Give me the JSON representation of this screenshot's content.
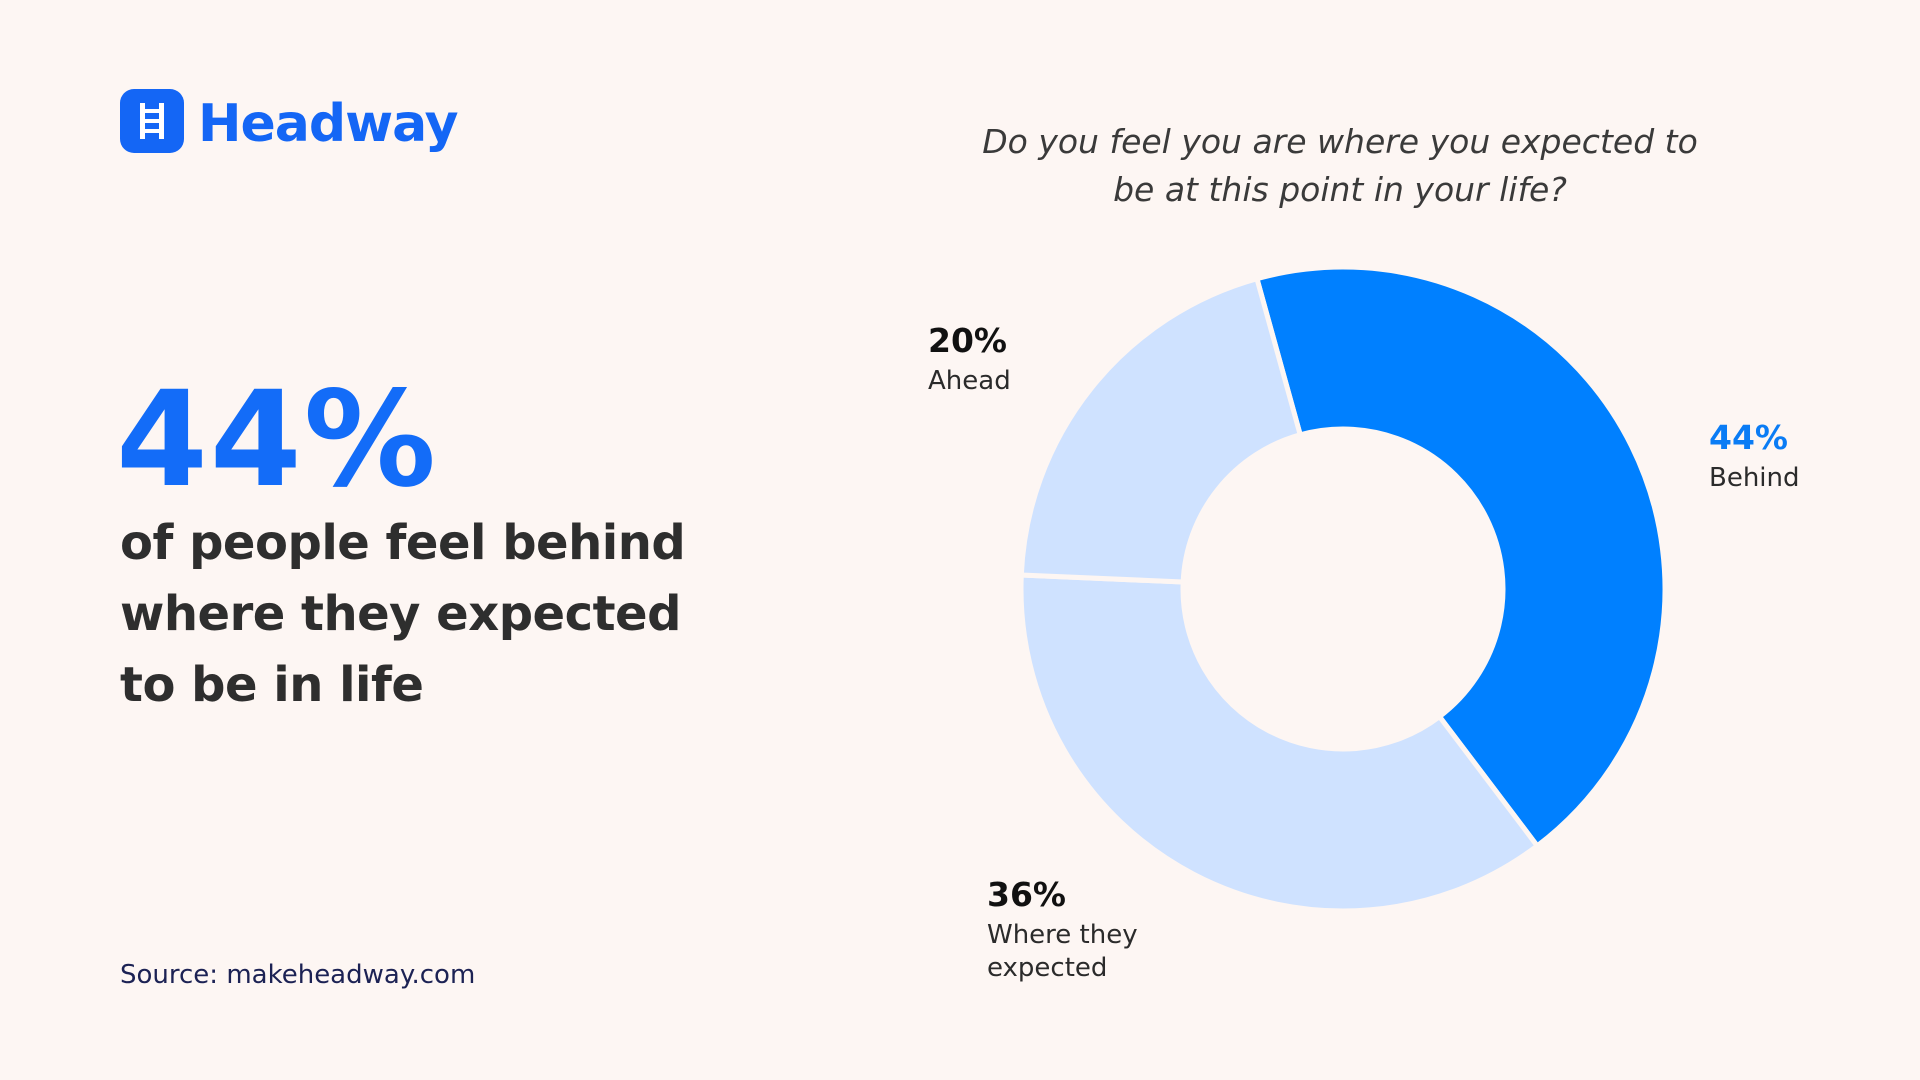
{
  "brand": "Headway",
  "headline": {
    "stat": "44%",
    "lines": [
      "of people feel behind",
      "where they expected",
      "to be in life"
    ]
  },
  "source": "Source: makeheadway.com",
  "chart_data": {
    "type": "pie",
    "donut": true,
    "title": "Do you feel you are where you expected to be at this point in your life?",
    "categories": [
      "Behind",
      "Where they expected",
      "Ahead"
    ],
    "values": [
      44,
      36,
      20
    ],
    "value_labels": [
      "44%",
      "36%",
      "20%"
    ],
    "colors": [
      "#0080ff",
      "#cfe2ff",
      "#cfe2ff"
    ],
    "label_colors": [
      "#0a7cf5",
      "#111111",
      "#111111"
    ]
  }
}
